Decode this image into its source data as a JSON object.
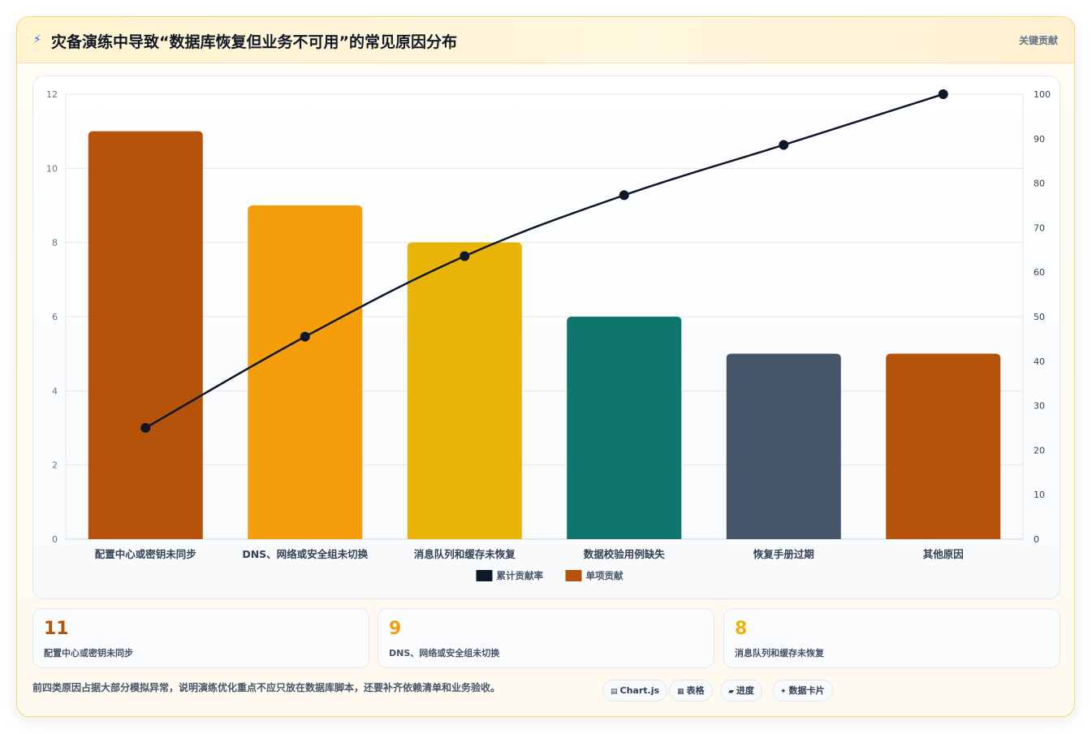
{
  "header": {
    "icon": "lightning-icon",
    "title": "灾备演练中导致“数据库恢复但业务不可用”的常见原因分布",
    "tag": "关键贡献"
  },
  "chart_data": {
    "type": "bar",
    "categories": [
      "配置中心或密钥未同步",
      "DNS、网络或安全组未切换",
      "消息队列和缓存未恢复",
      "数据校验用例缺失",
      "恢复手册过期",
      "其他原因"
    ],
    "series": [
      {
        "name": "单项贡献",
        "type": "bar",
        "axis": "left",
        "values": [
          11,
          9,
          8,
          6,
          5,
          5
        ],
        "colors": [
          "#b45309",
          "#f59e0b",
          "#eab308",
          "#0f766e",
          "#475569",
          "#b45309"
        ]
      },
      {
        "name": "累计贡献率",
        "type": "line",
        "axis": "right",
        "values": [
          25,
          45.5,
          63.6,
          77.3,
          88.6,
          100
        ],
        "color": "#0f172a"
      }
    ],
    "y_left": {
      "ylim": [
        0,
        12
      ],
      "ticks": [
        0,
        2,
        4,
        6,
        8,
        10,
        12
      ]
    },
    "y_right": {
      "ylim": [
        0,
        100
      ],
      "ticks": [
        0,
        10,
        20,
        30,
        40,
        50,
        60,
        70,
        80,
        90,
        100
      ]
    },
    "legend": {
      "position": "bottom",
      "items": [
        {
          "label": "累计贡献率",
          "color": "#0f172a"
        },
        {
          "label": "单项贡献",
          "color": "#b45309"
        }
      ]
    },
    "grid": true
  },
  "stats": [
    {
      "value": "11",
      "label": "配置中心或密钥未同步",
      "color": "#b45309"
    },
    {
      "value": "9",
      "label": "DNS、网络或安全组未切换",
      "color": "#f59e0b"
    },
    {
      "value": "8",
      "label": "消息队列和缓存未恢复",
      "color": "#eab308"
    }
  ],
  "footnote": "前四类原因占据大部分模拟异常，说明演练优化重点不应只放在数据库脚本，还要补齐依赖清单和业务验收。",
  "chips": [
    {
      "icon": "chart-icon",
      "glyph": "▤",
      "label": "Chart.js"
    },
    {
      "icon": "table-icon",
      "glyph": "▦",
      "label": "表格"
    },
    {
      "icon": "progress-icon",
      "glyph": "▰",
      "label": "进度"
    },
    {
      "icon": "card-icon",
      "glyph": "✦",
      "label": "数据卡片"
    }
  ]
}
